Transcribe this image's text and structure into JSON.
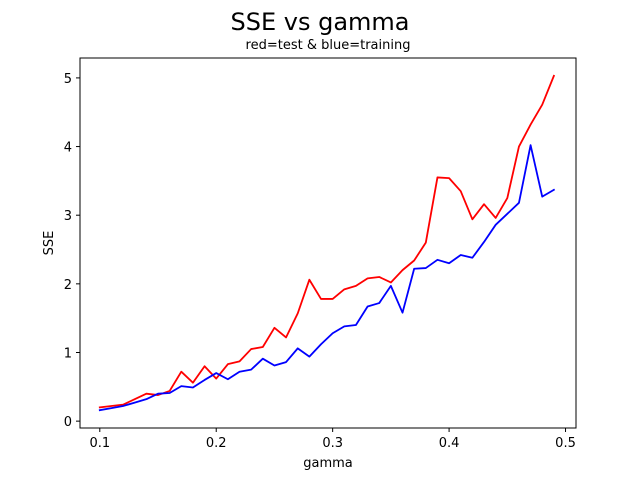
{
  "chart_data": {
    "type": "line",
    "title": "SSE vs gamma",
    "subtitle": "red=test & blue=training",
    "xlabel": "gamma",
    "ylabel": "SSE",
    "xlim": [
      0.083,
      0.509
    ],
    "ylim": [
      -0.1,
      5.29
    ],
    "xticks": [
      0.1,
      0.2,
      0.3,
      0.4,
      0.5
    ],
    "xtick_labels": [
      "0.1",
      "0.2",
      "0.3",
      "0.4",
      "0.5"
    ],
    "yticks": [
      0,
      1,
      2,
      3,
      4,
      5
    ],
    "ytick_labels": [
      "0",
      "1",
      "2",
      "3",
      "4",
      "5"
    ],
    "grid": false,
    "legend": "none",
    "x": [
      0.1,
      0.11,
      0.12,
      0.13,
      0.14,
      0.15,
      0.16,
      0.17,
      0.18,
      0.19,
      0.2,
      0.21,
      0.22,
      0.23,
      0.24,
      0.25,
      0.26,
      0.27,
      0.28,
      0.29,
      0.3,
      0.31,
      0.32,
      0.33,
      0.34,
      0.35,
      0.36,
      0.37,
      0.38,
      0.39,
      0.4,
      0.41,
      0.42,
      0.43,
      0.44,
      0.45,
      0.46,
      0.47,
      0.48,
      0.49
    ],
    "series": [
      {
        "color": "#ff0000",
        "values": [
          0.2,
          0.22,
          0.24,
          0.32,
          0.4,
          0.38,
          0.44,
          0.72,
          0.56,
          0.8,
          0.62,
          0.83,
          0.87,
          1.05,
          1.08,
          1.36,
          1.22,
          1.57,
          2.06,
          1.78,
          1.78,
          1.92,
          1.97,
          2.08,
          2.1,
          2.02,
          2.2,
          2.34,
          2.6,
          3.55,
          3.54,
          3.35,
          2.94,
          3.16,
          2.96,
          3.25,
          4.0,
          4.32,
          4.61,
          5.03
        ]
      },
      {
        "color": "#0000ff",
        "values": [
          0.16,
          0.19,
          0.22,
          0.27,
          0.32,
          0.4,
          0.41,
          0.51,
          0.49,
          0.6,
          0.7,
          0.61,
          0.72,
          0.75,
          0.91,
          0.81,
          0.86,
          1.06,
          0.94,
          1.12,
          1.28,
          1.38,
          1.4,
          1.67,
          1.72,
          1.97,
          1.58,
          2.22,
          2.23,
          2.35,
          2.3,
          2.42,
          2.38,
          2.61,
          2.86,
          3.02,
          3.18,
          4.02,
          3.27,
          3.37
        ]
      }
    ]
  }
}
